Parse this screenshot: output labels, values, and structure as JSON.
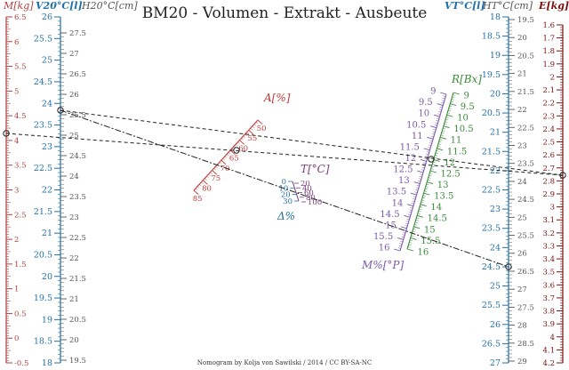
{
  "title": "BM20 - Volumen - Extrakt - Ausbeute",
  "credit": "Nomogram by Kolja von Sawilski / 2014 / CC BY-SA-NC",
  "colors": {
    "m": "#b04040",
    "v": "#1f6fa8",
    "h": "#555555",
    "e": "#7a1010",
    "a": "#c03a3a",
    "t": "#7a3d7a",
    "r": "#3b8a3b",
    "mp": "#7a5aa8"
  },
  "axes": {
    "m": {
      "label": "M[kg]",
      "ticks": [
        "-0.5",
        "0",
        "0.5",
        "1",
        "1.5",
        "2",
        "2.5",
        "3",
        "3.5",
        "4",
        "4.5",
        "5",
        "5.5",
        "6",
        "6.5"
      ]
    },
    "v20": {
      "label": "V20°C[l]",
      "ticks": [
        "18",
        "18.5",
        "19",
        "19.5",
        "20",
        "20.5",
        "21",
        "21.5",
        "22",
        "22.5",
        "23",
        "23.5",
        "24",
        "24.5",
        "25",
        "25.5",
        "26"
      ]
    },
    "h20": {
      "label": "H20°C[cm]",
      "ticks": [
        "19.5",
        "20",
        "20.5",
        "21",
        "21.5",
        "22",
        "22.5",
        "23",
        "23.5",
        "24",
        "24.5",
        "25",
        "25.5",
        "26",
        "26.5",
        "27",
        "27.5"
      ]
    },
    "vt": {
      "label": "VT°C[l]",
      "ticks": [
        "18",
        "18.5",
        "19",
        "19.5",
        "20",
        "20.5",
        "21",
        "21.5",
        "22",
        "22.5",
        "23",
        "23.5",
        "24",
        "24.5",
        "25",
        "25.5",
        "26",
        "26.5",
        "27"
      ]
    },
    "ht": {
      "label": "HT°C[cm]",
      "ticks": [
        "19.5",
        "20",
        "20.5",
        "21",
        "21.5",
        "22",
        "22.5",
        "23",
        "23.5",
        "24",
        "24.5",
        "25",
        "25.5",
        "26",
        "26.5",
        "27",
        "27.5",
        "28",
        "28.5",
        "29"
      ]
    },
    "e": {
      "label": "E[kg]",
      "ticks": [
        "1.6",
        "1.7",
        "1.8",
        "1.9",
        "2",
        "2.1",
        "2.2",
        "2.3",
        "2.4",
        "2.5",
        "2.6",
        "2.7",
        "2.8",
        "2.9",
        "3",
        "3.1",
        "3.2",
        "3.3",
        "3.4",
        "3.5",
        "3.6",
        "3.7",
        "3.8",
        "3.9",
        "4",
        "4.1",
        "4.2"
      ]
    },
    "a": {
      "label": "A[%]",
      "ticks": [
        "50",
        "55",
        "60",
        "65",
        "70",
        "75",
        "80",
        "85"
      ]
    },
    "t": {
      "label": "T[°C]",
      "left_ticks": [
        "0",
        "10",
        "20",
        "30"
      ],
      "right_ticks": [
        "20",
        "40",
        "60",
        "80",
        "100"
      ],
      "sub_label": "Δ%"
    },
    "r": {
      "label": "R[Bx]",
      "ticks": [
        "9",
        "9.5",
        "10",
        "10.5",
        "11",
        "11.5",
        "12",
        "12.5",
        "13",
        "13.5",
        "14",
        "14.5",
        "15",
        "15.5",
        "16"
      ]
    },
    "mp": {
      "label": "M%[°P]",
      "ticks": [
        "9",
        "9.5",
        "10",
        "10.5",
        "11",
        "11.5",
        "12",
        "12.5",
        "13",
        "13.5",
        "14",
        "14.5",
        "15",
        "15.5",
        "16"
      ]
    }
  }
}
